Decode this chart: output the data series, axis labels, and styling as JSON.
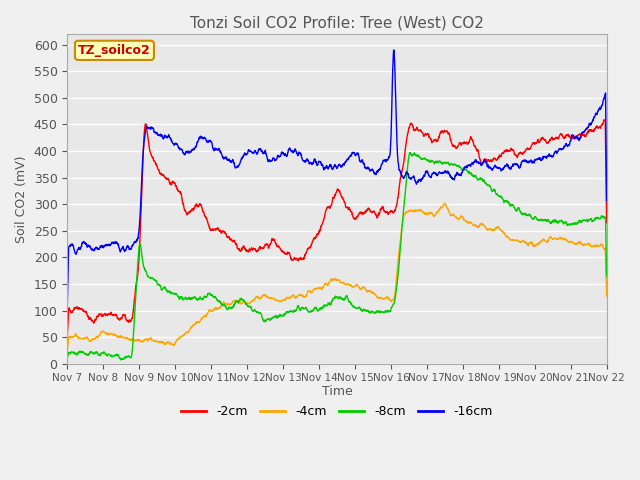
{
  "title": "Tonzi Soil CO2 Profile: Tree (West) CO2",
  "ylabel": "Soil CO2 (mV)",
  "xlabel": "Time",
  "legend_label": "TZ_soilco2",
  "series_labels": [
    "-2cm",
    "-4cm",
    "-8cm",
    "-16cm"
  ],
  "series_colors": [
    "#ff0000",
    "#ffa500",
    "#00cc00",
    "#0000ff"
  ],
  "ylim": [
    0,
    620
  ],
  "yticks": [
    0,
    50,
    100,
    150,
    200,
    250,
    300,
    350,
    400,
    450,
    500,
    550,
    600
  ],
  "xtick_labels": [
    "Nov 7",
    "Nov 8",
    "Nov 9",
    "Nov 10",
    "Nov 11",
    "Nov 12",
    "Nov 13",
    "Nov 14",
    "Nov 15",
    "Nov 16",
    "Nov 17",
    "Nov 18",
    "Nov 19",
    "Nov 20",
    "Nov 21",
    "Nov 22"
  ],
  "background_color": "#e8e8e8",
  "plot_bg_color": "#f0f0f0",
  "grid_color": "#ffffff",
  "text_color": "#555555"
}
